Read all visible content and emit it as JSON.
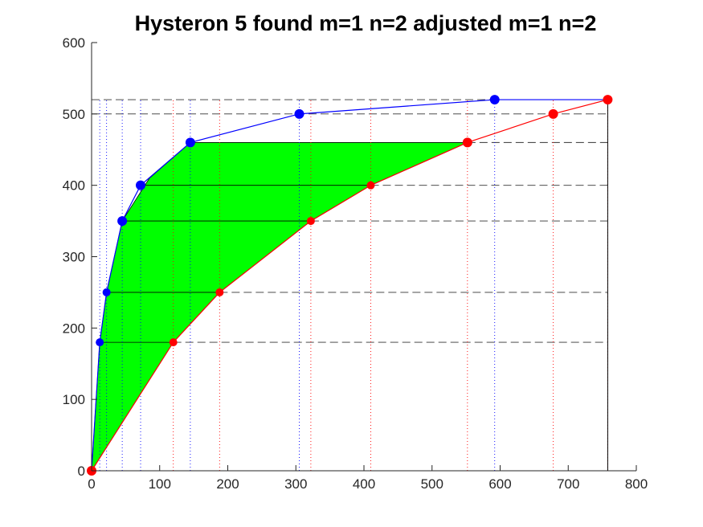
{
  "chart_data": {
    "type": "line",
    "title": "Hysteron 5 found m=1 n=2 adjusted m=1 n=2",
    "xlabel": "",
    "ylabel": "",
    "xlim": [
      0,
      800
    ],
    "ylim": [
      0,
      600
    ],
    "xticks": [
      0,
      100,
      200,
      300,
      400,
      500,
      600,
      700,
      800
    ],
    "yticks": [
      0,
      100,
      200,
      300,
      400,
      500,
      600
    ],
    "grid": false,
    "colors": {
      "ascending": "#0000ff",
      "descending": "#ff0000",
      "fill": "#00ff00",
      "guide": "#000000"
    },
    "series": [
      {
        "points": [
          [
            0,
            0
          ],
          [
            12,
            180
          ],
          [
            22,
            250
          ],
          [
            45,
            350
          ],
          [
            72,
            400
          ],
          [
            145,
            460
          ],
          [
            305,
            500
          ],
          [
            592,
            520
          ],
          [
            758,
            520
          ]
        ]
      },
      {
        "points": [
          [
            0,
            0
          ],
          [
            120,
            180
          ],
          [
            188,
            250
          ],
          [
            322,
            350
          ],
          [
            410,
            400
          ],
          [
            552,
            460
          ],
          [
            678,
            500
          ],
          [
            758,
            520
          ]
        ]
      }
    ],
    "fill_polygon": [
      [
        0,
        0
      ],
      [
        12,
        180
      ],
      [
        22,
        250
      ],
      [
        45,
        350
      ],
      [
        85,
        410
      ],
      [
        145,
        460
      ],
      [
        552,
        460
      ],
      [
        410,
        400
      ],
      [
        322,
        350
      ],
      [
        188,
        250
      ],
      [
        120,
        180
      ],
      [
        0,
        0
      ]
    ],
    "horizontal_levels": [
      180,
      250,
      350,
      400,
      460,
      500,
      520
    ],
    "vertical_guides_ascending": [
      12,
      22,
      45,
      72,
      145,
      305,
      592
    ],
    "vertical_guides_descending": [
      120,
      188,
      322,
      410,
      552,
      678,
      758
    ]
  }
}
